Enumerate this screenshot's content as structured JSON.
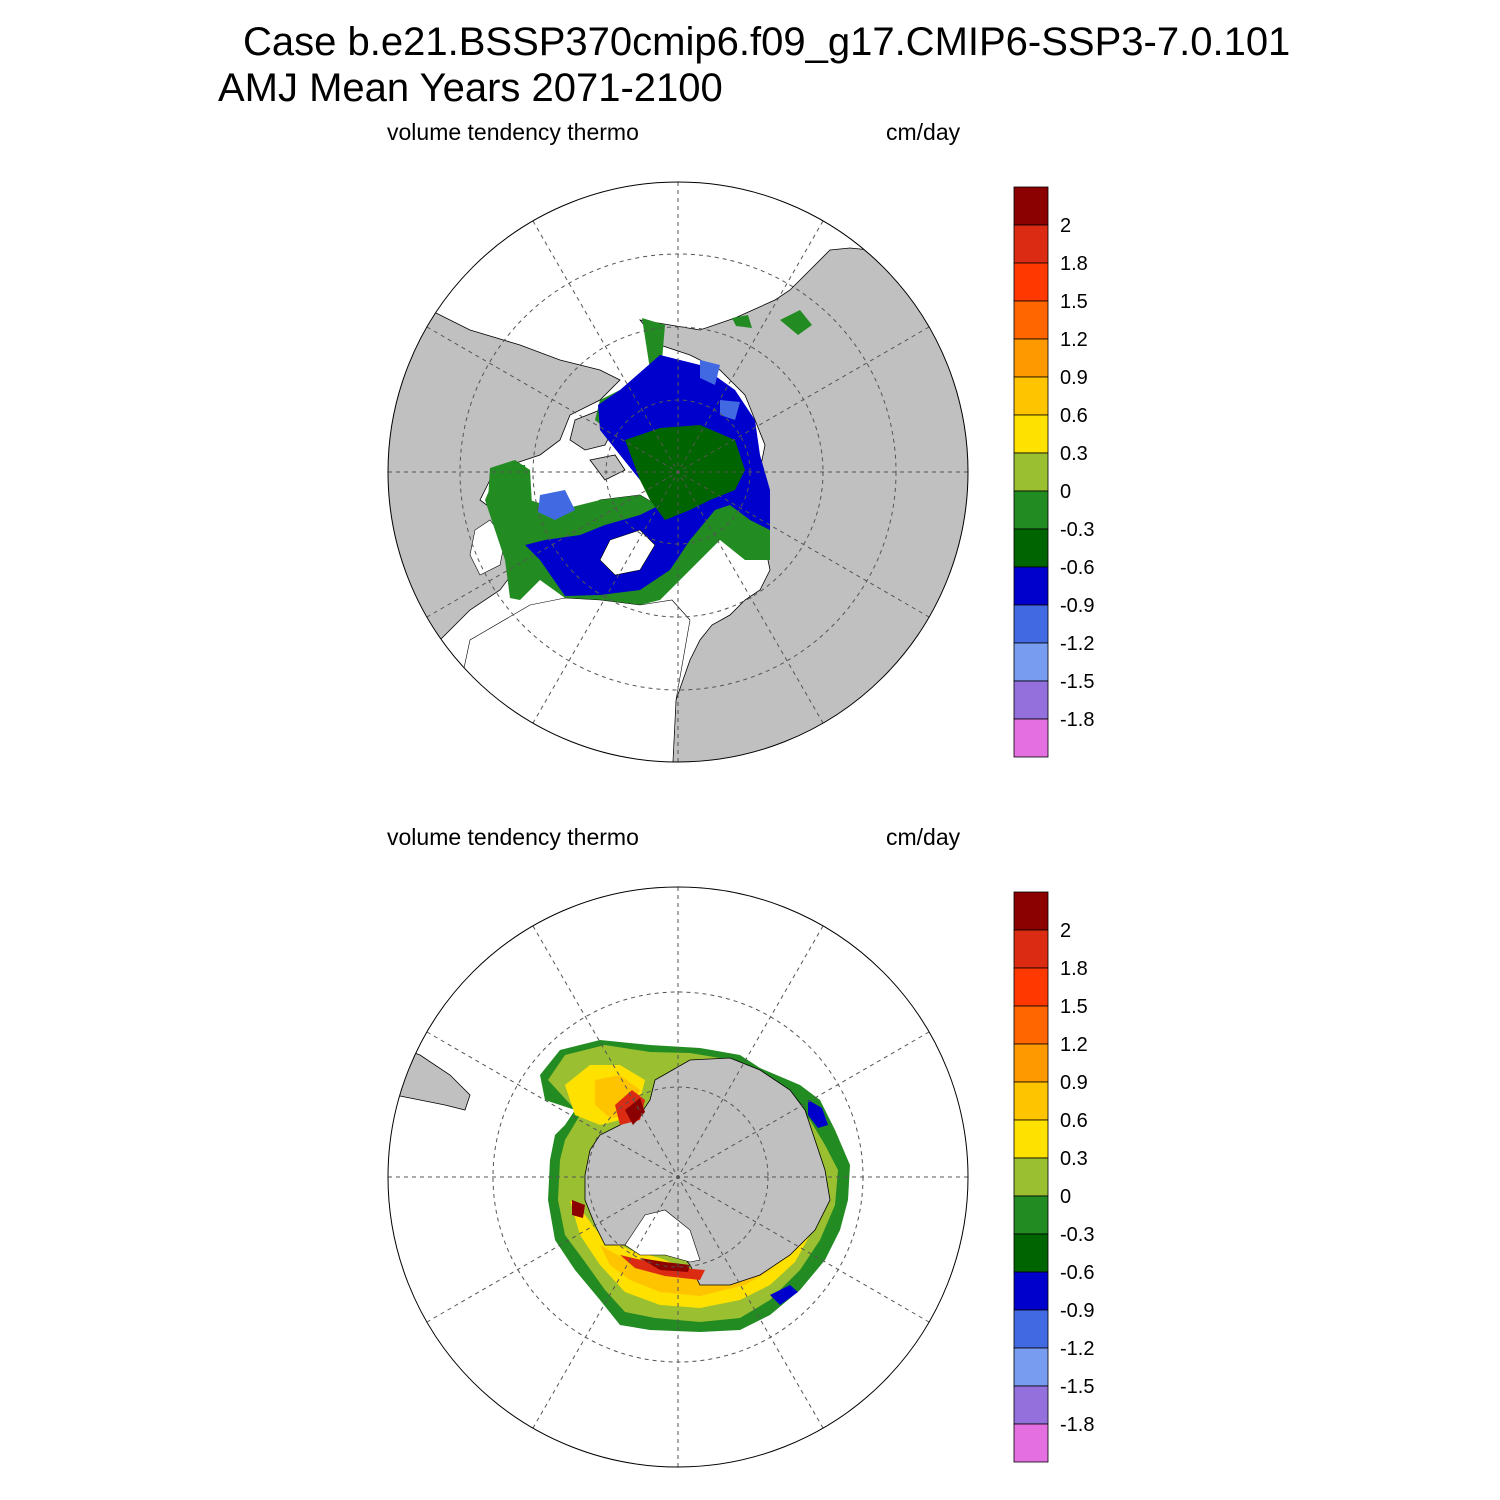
{
  "header": {
    "title_line1": "Case b.e21.BSSP370cmip6.f09_g17.CMIP6-SSP3-7.0.101",
    "title_line2": "AMJ Mean   Years 2071-2100"
  },
  "panels": [
    {
      "id": "north",
      "left_label": "volume tendency thermo",
      "right_label": "cm/day",
      "hemisphere": "Arctic",
      "dominant_values": "negative (-0.3 to -1.2 cm/day)"
    },
    {
      "id": "south",
      "left_label": "volume tendency thermo",
      "right_label": "cm/day",
      "hemisphere": "Antarctic",
      "dominant_values": "positive (0 to 2+ cm/day)"
    }
  ],
  "colorbar": {
    "labels": [
      "2",
      "1.8",
      "1.5",
      "1.2",
      "0.9",
      "0.6",
      "0.3",
      "0",
      "-0.3",
      "-0.6",
      "-0.9",
      "-1.2",
      "-1.5",
      "-1.8"
    ],
    "colors": [
      "#8b0000",
      "#dc2b13",
      "#ff3800",
      "#ff6600",
      "#ff9900",
      "#ffc400",
      "#ffe100",
      "#9abf31",
      "#228b22",
      "#006400",
      "#0000cd",
      "#4169e1",
      "#789cf0",
      "#9370db",
      "#e36fe0"
    ]
  },
  "map_colors": {
    "land": "#c0c0c0",
    "ocean": "#ffffff",
    "grid": "#555555"
  }
}
